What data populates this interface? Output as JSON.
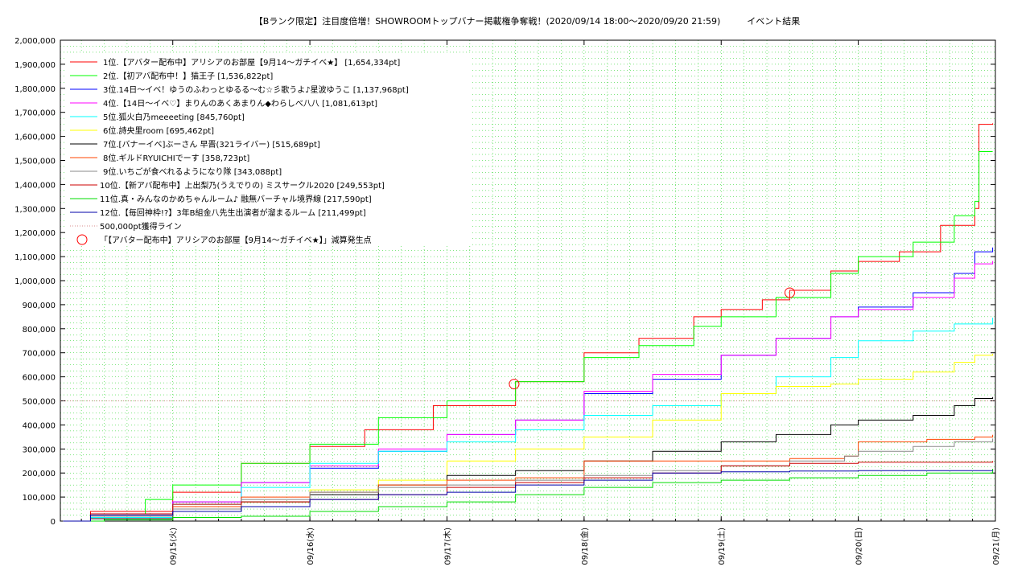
{
  "chart_data": {
    "type": "line",
    "title": "【Bランク限定】注目度倍増！SHOWROOMトップバナー掲載権争奪戦！(2020/09/14 18:00〜2020/09/20 21:59)　　　イベント結果",
    "xlabel": "",
    "ylabel": "",
    "ylim": [
      0,
      2000000
    ],
    "y_ticks": [
      "0",
      "100,000",
      "200,000",
      "300,000",
      "400,000",
      "500,000",
      "600,000",
      "700,000",
      "800,000",
      "900,000",
      "1,000,000",
      "1,100,000",
      "1,200,000",
      "1,300,000",
      "1,400,000",
      "1,500,000",
      "1,600,000",
      "1,700,000",
      "1,800,000",
      "1,900,000",
      "2,000,000"
    ],
    "x_ticks": [
      "09/15(火)",
      "09/16(水)",
      "09/17(木)",
      "09/18(金)",
      "09/19(土)",
      "09/20(日)",
      "09/21(月)"
    ],
    "x_tick_days": [
      1,
      2,
      3,
      4,
      5,
      6,
      7
    ],
    "xlim_days": [
      0.18,
      7.0
    ],
    "grid": true,
    "legend_position": "top-left",
    "series": [
      {
        "name": "1位.【アバター配布中】アリシアのお部屋【9月14〜ガチイベ★】 [1,654,334pt]",
        "color": "#ff0000",
        "points": [
          [
            0.2,
            0
          ],
          [
            0.4,
            40000
          ],
          [
            1.0,
            120000
          ],
          [
            1.5,
            240000
          ],
          [
            2.0,
            310000
          ],
          [
            2.4,
            380000
          ],
          [
            2.9,
            480000
          ],
          [
            3.5,
            580000
          ],
          [
            4.0,
            700000
          ],
          [
            4.4,
            760000
          ],
          [
            4.8,
            850000
          ],
          [
            5.0,
            880000
          ],
          [
            5.3,
            920000
          ],
          [
            5.5,
            960000
          ],
          [
            5.8,
            1040000
          ],
          [
            6.0,
            1080000
          ],
          [
            6.3,
            1120000
          ],
          [
            6.6,
            1230000
          ],
          [
            6.85,
            1300000
          ],
          [
            6.88,
            1650000
          ],
          [
            6.98,
            1654334
          ]
        ]
      },
      {
        "name": "2位.【初アバ配布中！】猫王子 [1,536,822pt]",
        "color": "#00ff00",
        "points": [
          [
            0.2,
            0
          ],
          [
            0.4,
            30000
          ],
          [
            0.8,
            90000
          ],
          [
            1.0,
            150000
          ],
          [
            1.5,
            240000
          ],
          [
            2.0,
            320000
          ],
          [
            2.5,
            430000
          ],
          [
            3.0,
            500000
          ],
          [
            3.5,
            580000
          ],
          [
            4.0,
            680000
          ],
          [
            4.4,
            730000
          ],
          [
            4.8,
            810000
          ],
          [
            5.0,
            850000
          ],
          [
            5.4,
            930000
          ],
          [
            5.8,
            1030000
          ],
          [
            6.0,
            1100000
          ],
          [
            6.4,
            1160000
          ],
          [
            6.7,
            1270000
          ],
          [
            6.85,
            1330000
          ],
          [
            6.88,
            1536822
          ],
          [
            6.98,
            1536822
          ]
        ]
      },
      {
        "name": "3位.14日〜イベ！ゆうのふわっとゆるる〜む☆彡歌うよ♪星波ゆうこ [1,137,968pt]",
        "color": "#0000ff",
        "points": [
          [
            0.2,
            0
          ],
          [
            0.4,
            20000
          ],
          [
            1.0,
            80000
          ],
          [
            1.5,
            160000
          ],
          [
            2.0,
            220000
          ],
          [
            2.5,
            290000
          ],
          [
            3.0,
            360000
          ],
          [
            3.5,
            420000
          ],
          [
            4.0,
            530000
          ],
          [
            4.5,
            590000
          ],
          [
            5.0,
            690000
          ],
          [
            5.4,
            760000
          ],
          [
            5.8,
            850000
          ],
          [
            6.0,
            890000
          ],
          [
            6.4,
            950000
          ],
          [
            6.7,
            1030000
          ],
          [
            6.85,
            1120000
          ],
          [
            6.98,
            1137968
          ]
        ]
      },
      {
        "name": "4位.【14日〜イベ♡】まりんのあくあまりん◆わらしべ八八 [1,081,613pt]",
        "color": "#ff00ff",
        "points": [
          [
            0.2,
            0
          ],
          [
            0.4,
            25000
          ],
          [
            1.0,
            80000
          ],
          [
            1.5,
            160000
          ],
          [
            2.0,
            230000
          ],
          [
            2.5,
            300000
          ],
          [
            3.0,
            360000
          ],
          [
            3.5,
            420000
          ],
          [
            4.0,
            540000
          ],
          [
            4.5,
            610000
          ],
          [
            5.0,
            690000
          ],
          [
            5.4,
            760000
          ],
          [
            5.8,
            850000
          ],
          [
            6.0,
            880000
          ],
          [
            6.4,
            930000
          ],
          [
            6.7,
            1010000
          ],
          [
            6.85,
            1070000
          ],
          [
            6.98,
            1081613
          ]
        ]
      },
      {
        "name": "5位.狐火白乃meeeeting [845,760pt]",
        "color": "#00ffff",
        "points": [
          [
            0.2,
            0
          ],
          [
            0.4,
            15000
          ],
          [
            1.0,
            70000
          ],
          [
            1.5,
            140000
          ],
          [
            2.0,
            240000
          ],
          [
            2.5,
            290000
          ],
          [
            3.0,
            330000
          ],
          [
            3.5,
            380000
          ],
          [
            4.0,
            440000
          ],
          [
            4.5,
            480000
          ],
          [
            5.0,
            530000
          ],
          [
            5.4,
            600000
          ],
          [
            5.8,
            680000
          ],
          [
            6.0,
            750000
          ],
          [
            6.4,
            790000
          ],
          [
            6.7,
            820000
          ],
          [
            6.98,
            845760
          ]
        ]
      },
      {
        "name": "6位.詩央里room [695,462pt]",
        "color": "#ffff00",
        "points": [
          [
            0.2,
            0
          ],
          [
            0.4,
            10000
          ],
          [
            1.0,
            40000
          ],
          [
            1.5,
            80000
          ],
          [
            2.0,
            130000
          ],
          [
            2.5,
            170000
          ],
          [
            3.0,
            250000
          ],
          [
            3.5,
            300000
          ],
          [
            4.0,
            350000
          ],
          [
            4.5,
            420000
          ],
          [
            5.0,
            530000
          ],
          [
            5.4,
            560000
          ],
          [
            5.8,
            570000
          ],
          [
            6.0,
            590000
          ],
          [
            6.4,
            620000
          ],
          [
            6.7,
            660000
          ],
          [
            6.85,
            690000
          ],
          [
            6.98,
            695462
          ]
        ]
      },
      {
        "name": "7位.[バナーイベ]ぶーさん 早晋(321ライバー) [515,689pt]",
        "color": "#000000",
        "points": [
          [
            0.2,
            0
          ],
          [
            0.4,
            10000
          ],
          [
            1.0,
            40000
          ],
          [
            1.5,
            80000
          ],
          [
            2.0,
            110000
          ],
          [
            2.5,
            150000
          ],
          [
            3.0,
            190000
          ],
          [
            3.5,
            210000
          ],
          [
            4.0,
            250000
          ],
          [
            4.5,
            290000
          ],
          [
            5.0,
            330000
          ],
          [
            5.4,
            360000
          ],
          [
            5.8,
            400000
          ],
          [
            6.0,
            420000
          ],
          [
            6.4,
            440000
          ],
          [
            6.7,
            480000
          ],
          [
            6.85,
            510000
          ],
          [
            6.98,
            515689
          ]
        ]
      },
      {
        "name": "8位.ギルドRYUICHIでーす [358,723pt]",
        "color": "#ff4400",
        "points": [
          [
            0.2,
            0
          ],
          [
            0.4,
            30000
          ],
          [
            1.0,
            60000
          ],
          [
            1.5,
            100000
          ],
          [
            2.0,
            120000
          ],
          [
            2.5,
            150000
          ],
          [
            3.0,
            170000
          ],
          [
            3.5,
            180000
          ],
          [
            4.0,
            250000
          ],
          [
            4.5,
            250000
          ],
          [
            5.0,
            250000
          ],
          [
            5.5,
            260000
          ],
          [
            5.9,
            270000
          ],
          [
            6.0,
            330000
          ],
          [
            6.5,
            340000
          ],
          [
            6.85,
            350000
          ],
          [
            6.98,
            358723
          ]
        ]
      },
      {
        "name": "9位.いちごが食べれるようになり隊 [343,088pt]",
        "color": "#888888",
        "points": [
          [
            0.2,
            0
          ],
          [
            0.4,
            20000
          ],
          [
            1.0,
            50000
          ],
          [
            1.5,
            90000
          ],
          [
            2.0,
            120000
          ],
          [
            2.5,
            140000
          ],
          [
            3.0,
            150000
          ],
          [
            3.5,
            170000
          ],
          [
            4.0,
            190000
          ],
          [
            4.5,
            210000
          ],
          [
            5.0,
            230000
          ],
          [
            5.5,
            250000
          ],
          [
            5.9,
            270000
          ],
          [
            6.0,
            290000
          ],
          [
            6.4,
            310000
          ],
          [
            6.7,
            330000
          ],
          [
            6.98,
            343088
          ]
        ]
      },
      {
        "name": "10位.【新アバ配布中】上出梨乃(うえでりの) ミスサークル2020 [249,553pt]",
        "color": "#cc0000",
        "points": [
          [
            0.2,
            0
          ],
          [
            0.4,
            30000
          ],
          [
            1.0,
            70000
          ],
          [
            1.5,
            80000
          ],
          [
            2.0,
            90000
          ],
          [
            2.5,
            110000
          ],
          [
            3.0,
            140000
          ],
          [
            3.5,
            160000
          ],
          [
            4.0,
            180000
          ],
          [
            4.5,
            200000
          ],
          [
            5.0,
            230000
          ],
          [
            5.5,
            240000
          ],
          [
            6.0,
            245000
          ],
          [
            6.98,
            249553
          ]
        ]
      },
      {
        "name": "11位.真・みんなのかめちゃんルーム♪ 融無バーチャル境界線 [217,590pt]",
        "color": "#00dd00",
        "points": [
          [
            0.2,
            0
          ],
          [
            0.5,
            5000
          ],
          [
            1.0,
            15000
          ],
          [
            1.5,
            20000
          ],
          [
            2.0,
            40000
          ],
          [
            2.5,
            60000
          ],
          [
            3.0,
            80000
          ],
          [
            3.5,
            110000
          ],
          [
            4.0,
            140000
          ],
          [
            4.5,
            160000
          ],
          [
            5.0,
            170000
          ],
          [
            5.5,
            180000
          ],
          [
            6.0,
            190000
          ],
          [
            6.5,
            200000
          ],
          [
            6.98,
            217590
          ]
        ]
      },
      {
        "name": "12位.【毎回神枠!?】3年B組金八先生出演者が溜まるルーム [211,499pt]",
        "color": "#0000aa",
        "points": [
          [
            0.2,
            0
          ],
          [
            0.4,
            25000
          ],
          [
            1.0,
            40000
          ],
          [
            1.5,
            60000
          ],
          [
            2.0,
            90000
          ],
          [
            2.5,
            110000
          ],
          [
            3.0,
            120000
          ],
          [
            3.5,
            150000
          ],
          [
            4.0,
            170000
          ],
          [
            4.5,
            200000
          ],
          [
            5.0,
            205000
          ],
          [
            5.5,
            208000
          ],
          [
            6.0,
            210000
          ],
          [
            6.98,
            211499
          ]
        ]
      }
    ],
    "reference_line": {
      "name": "500,000pt獲得ライン",
      "value": 500000,
      "color": "#cc6666"
    },
    "marker_legend": {
      "name": "「【アバター配布中】アリシアのお部屋【9月14〜ガチイベ★】」減算発生点",
      "color": "#ff0000"
    },
    "markers": [
      [
        3.49,
        570000
      ],
      [
        5.5,
        950000
      ]
    ]
  }
}
